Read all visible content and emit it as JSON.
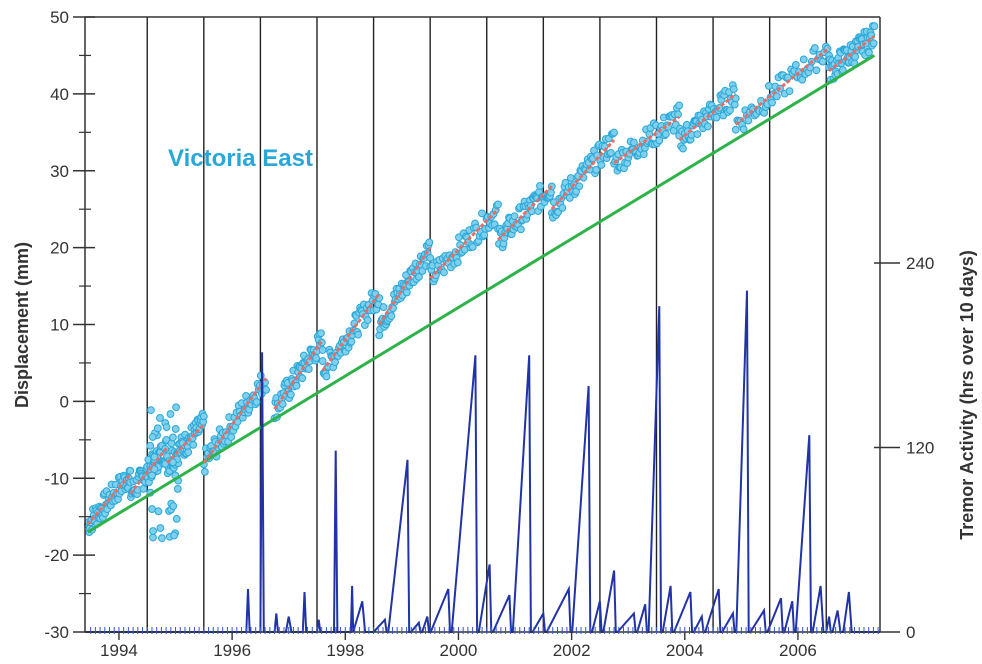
{
  "chart_data": {
    "type": "line",
    "series_label": "Victoria East",
    "ylabel_left": "Displacement (mm)",
    "ylabel_right": "Tremor Activity (hrs over 10 days)",
    "xlim": [
      1993.4,
      2007.45
    ],
    "ylim_left": [
      -30,
      50
    ],
    "ylim_right": [
      0,
      400
    ],
    "x_tick_labels": [
      "1994",
      "1996",
      "1998",
      "2000",
      "2002",
      "2004",
      "2006"
    ],
    "x_tick_values": [
      1994,
      1996,
      1998,
      2000,
      2002,
      2004,
      2006
    ],
    "y_left_ticks": [
      -30,
      -20,
      -10,
      0,
      10,
      20,
      30,
      40,
      50
    ],
    "y_left_tick_labels": [
      "-30",
      "-20",
      "-10",
      "0",
      "10",
      "20",
      "30",
      "40",
      "50"
    ],
    "y_right_ticks": [
      0,
      120,
      240
    ],
    "y_right_tick_labels": [
      "0",
      "120",
      "240"
    ],
    "vertical_event_lines": [
      1994.5,
      1995.5,
      1996.5,
      1997.5,
      1998.5,
      1999.5,
      2000.5,
      2001.5,
      2002.5,
      2003.5,
      2004.5,
      2005.5,
      2006.5
    ],
    "trend_line": {
      "x": [
        1993.45,
        2007.35
      ],
      "y": [
        -17,
        45
      ]
    },
    "displacement_segments": [
      {
        "x": [
          1993.45,
          1994.2
        ],
        "y": [
          -16,
          -9.5
        ]
      },
      {
        "x": [
          1994.2,
          1994.85
        ],
        "y": [
          -12,
          -6
        ]
      },
      {
        "x": [
          1994.85,
          1995.5
        ],
        "y": [
          -8,
          -3
        ]
      },
      {
        "x": [
          1995.5,
          1996.6
        ],
        "y": [
          -8,
          3
        ]
      },
      {
        "x": [
          1996.75,
          1997.6
        ],
        "y": [
          -1,
          8
        ]
      },
      {
        "x": [
          1997.6,
          1998.6
        ],
        "y": [
          4,
          14
        ]
      },
      {
        "x": [
          1998.6,
          1999.5
        ],
        "y": [
          10,
          20
        ]
      },
      {
        "x": [
          1999.5,
          2000.7
        ],
        "y": [
          16,
          25
        ]
      },
      {
        "x": [
          2000.7,
          2001.65
        ],
        "y": [
          21,
          28
        ]
      },
      {
        "x": [
          2001.65,
          2002.75
        ],
        "y": [
          25,
          34
        ]
      },
      {
        "x": [
          2002.75,
          2003.9
        ],
        "y": [
          31,
          37
        ]
      },
      {
        "x": [
          2003.9,
          2004.9
        ],
        "y": [
          34,
          40
        ]
      },
      {
        "x": [
          2004.9,
          2006.55
        ],
        "y": [
          36,
          46
        ]
      },
      {
        "x": [
          2006.55,
          2007.35
        ],
        "y": [
          43,
          47.5
        ]
      }
    ],
    "tremor_activity": {
      "x": [
        1993.4,
        1996.25,
        1996.28,
        1996.31,
        1996.5,
        1996.53,
        1996.56,
        1996.75,
        1996.78,
        1996.81,
        1996.95,
        1997.0,
        1997.05,
        1997.25,
        1997.28,
        1997.31,
        1997.5,
        1997.53,
        1997.56,
        1997.8,
        1997.83,
        1997.86,
        1998.1,
        1998.12,
        1998.14,
        1998.3,
        1998.35,
        1998.5,
        1998.7,
        1998.73,
        1998.76,
        1999.1,
        1999.13,
        1999.16,
        1999.3,
        1999.33,
        1999.36,
        1999.45,
        1999.48,
        1999.51,
        1999.82,
        1999.85,
        1999.88,
        2000.3,
        2000.33,
        2000.36,
        2000.55,
        2000.58,
        2000.61,
        2000.9,
        2000.93,
        2000.96,
        2001.25,
        2001.28,
        2001.31,
        2001.5,
        2001.53,
        2001.56,
        2001.95,
        2001.98,
        2002.01,
        2002.3,
        2002.33,
        2002.36,
        2002.5,
        2002.53,
        2002.56,
        2002.75,
        2002.78,
        2002.81,
        2003.1,
        2003.13,
        2003.16,
        2003.3,
        2003.33,
        2003.36,
        2003.55,
        2003.58,
        2003.61,
        2003.75,
        2003.78,
        2003.81,
        2004.1,
        2004.13,
        2004.16,
        2004.3,
        2004.33,
        2004.36,
        2004.6,
        2004.63,
        2004.66,
        2004.85,
        2004.88,
        2004.91,
        2005.1,
        2005.13,
        2005.16,
        2005.4,
        2005.43,
        2005.46,
        2005.7,
        2005.73,
        2005.76,
        2005.9,
        2005.93,
        2005.96,
        2006.2,
        2006.23,
        2006.26,
        2006.4,
        2006.45,
        2006.5,
        2006.55,
        2006.58,
        2006.61,
        2006.7,
        2006.75,
        2006.8,
        2006.9,
        2006.95,
        2007.0,
        2007.45
      ],
      "y": [
        0,
        0,
        28,
        0,
        0,
        182,
        0,
        0,
        12,
        0,
        0,
        10,
        0,
        0,
        26,
        0,
        0,
        8,
        0,
        0,
        118,
        0,
        0,
        30,
        0,
        20,
        0,
        0,
        8,
        0,
        0,
        112,
        0,
        0,
        6,
        0,
        0,
        10,
        0,
        0,
        28,
        0,
        0,
        180,
        0,
        0,
        44,
        0,
        0,
        24,
        0,
        0,
        180,
        0,
        0,
        12,
        0,
        0,
        28,
        0,
        0,
        160,
        0,
        0,
        20,
        0,
        0,
        40,
        0,
        0,
        12,
        0,
        0,
        18,
        0,
        0,
        212,
        0,
        0,
        30,
        0,
        0,
        26,
        0,
        0,
        10,
        0,
        0,
        28,
        0,
        0,
        12,
        0,
        0,
        222,
        0,
        0,
        14,
        0,
        0,
        22,
        0,
        0,
        20,
        0,
        0,
        128,
        0,
        0,
        30,
        0,
        0,
        10,
        0,
        0,
        14,
        0,
        0,
        26,
        0,
        0,
        0
      ]
    },
    "colors": {
      "scatter": "#29a7d9",
      "fit_segments": "#e0706a",
      "trend": "#2db34a",
      "tremor": "#2233a8",
      "grid": "#222222"
    }
  }
}
